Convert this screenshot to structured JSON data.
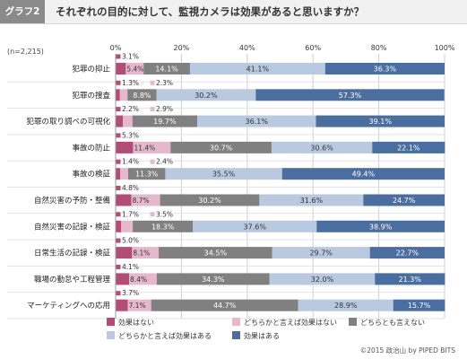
{
  "header": {
    "badge": "グラフ2",
    "title": "それぞれの目的に対して、監視カメラは効果があると思いますか？"
  },
  "note": "(n=2,215)",
  "footer": "©2015 政治山 by PIPED BITS",
  "colors": {
    "series": [
      "#b24d78",
      "#e6b8cc",
      "#808080",
      "#b8c9e0",
      "#4a6ea0"
    ],
    "grid": "#cfcfcf"
  },
  "chart_data": {
    "type": "bar",
    "orientation": "horizontal",
    "stacked": true,
    "xlim": [
      0,
      100
    ],
    "xticks": [
      {
        "value": 0,
        "label": "0%"
      },
      {
        "value": 20,
        "label": "20%"
      },
      {
        "value": 40,
        "label": "40%"
      },
      {
        "value": 60,
        "label": "60%"
      },
      {
        "value": 80,
        "label": "80%"
      },
      {
        "value": 100,
        "label": "100%"
      }
    ],
    "categories": [
      "犯罪の抑止",
      "犯罪の捜査",
      "犯罪の取り調べの可視化",
      "事故の防止",
      "事故の検証",
      "自然災害の予防・整備",
      "自然災害の記録・検証",
      "日常生活の記録・検証",
      "職場の勤怠や工程管理",
      "マーケティングへの応用"
    ],
    "series": [
      {
        "name": "効果はない",
        "values": [
          3.1,
          1.3,
          2.2,
          5.3,
          1.4,
          4.8,
          1.7,
          5.0,
          4.1,
          3.7
        ]
      },
      {
        "name": "どちらかと言えば効果はない",
        "values": [
          5.4,
          2.3,
          2.9,
          11.4,
          2.4,
          8.7,
          3.5,
          8.1,
          8.4,
          7.1
        ]
      },
      {
        "name": "どちらとも言えない",
        "values": [
          14.1,
          8.8,
          19.7,
          30.7,
          11.3,
          30.2,
          18.3,
          34.5,
          34.3,
          44.7
        ]
      },
      {
        "name": "どちらかと言えば効果はある",
        "values": [
          41.1,
          30.2,
          36.1,
          30.6,
          35.5,
          31.6,
          37.6,
          29.7,
          32.0,
          28.9
        ]
      },
      {
        "name": "効果はある",
        "values": [
          36.3,
          57.3,
          39.1,
          22.1,
          49.4,
          24.7,
          38.9,
          22.7,
          21.3,
          15.7
        ]
      }
    ],
    "data_labels": [
      [
        "3.1%",
        "5.4%",
        "14.1%",
        "41.1%",
        "36.3%"
      ],
      [
        "1.3%",
        "2.3%",
        "8.8%",
        "30.2%",
        "57.3%"
      ],
      [
        "2.2%",
        "2.9%",
        "19.7%",
        "36.1%",
        "39.1%"
      ],
      [
        "5.3%",
        "11.4%",
        "30.7%",
        "30.6%",
        "22.1%"
      ],
      [
        "1.4%",
        "2.4%",
        "11.3%",
        "35.5%",
        "49.4%"
      ],
      [
        "4.8%",
        "8.7%",
        "30.2%",
        "31.6%",
        "24.7%"
      ],
      [
        "1.7%",
        "3.5%",
        "18.3%",
        "37.6%",
        "38.9%"
      ],
      [
        "5.0%",
        "8.1%",
        "34.5%",
        "29.7%",
        "22.7%"
      ],
      [
        "4.1%",
        "8.4%",
        "34.3%",
        "32.0%",
        "21.3%"
      ],
      [
        "3.7%",
        "7.1%",
        "44.7%",
        "28.9%",
        "15.7%"
      ]
    ],
    "legend": {
      "position": "bottom"
    },
    "grid": true
  }
}
